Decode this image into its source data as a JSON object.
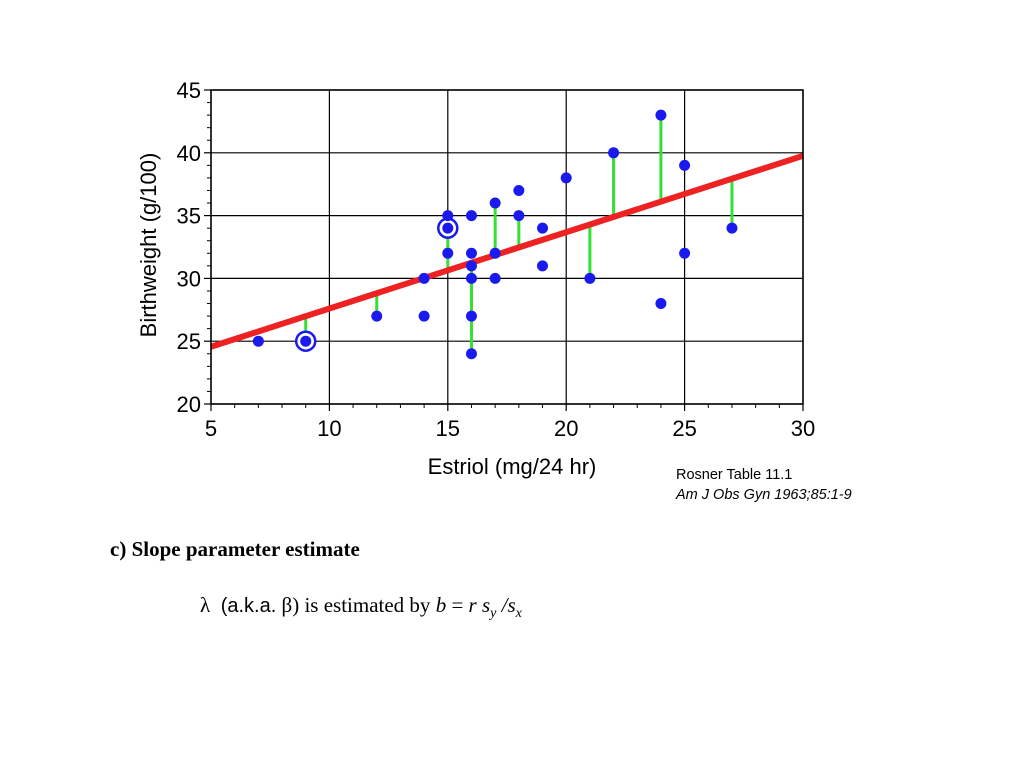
{
  "chart_data": {
    "type": "scatter",
    "xlabel": "Estriol (mg/24 hr)",
    "ylabel": "Birthweight (g/100)",
    "xlim": [
      5,
      30
    ],
    "ylim": [
      20,
      45
    ],
    "x_ticks": [
      "5",
      "10",
      "15",
      "20",
      "25",
      "30"
    ],
    "y_ticks": [
      "20",
      "25",
      "30",
      "35",
      "40",
      "45"
    ],
    "grid": true,
    "points": [
      {
        "x": 7,
        "y": 25
      },
      {
        "x": 9,
        "y": 25,
        "circled": true
      },
      {
        "x": 12,
        "y": 27
      },
      {
        "x": 14,
        "y": 27
      },
      {
        "x": 14,
        "y": 30
      },
      {
        "x": 15,
        "y": 32
      },
      {
        "x": 15,
        "y": 34,
        "circled": true
      },
      {
        "x": 15,
        "y": 35
      },
      {
        "x": 16,
        "y": 24
      },
      {
        "x": 16,
        "y": 27
      },
      {
        "x": 16,
        "y": 30
      },
      {
        "x": 16,
        "y": 31
      },
      {
        "x": 16,
        "y": 32
      },
      {
        "x": 16,
        "y": 35
      },
      {
        "x": 17,
        "y": 30
      },
      {
        "x": 17,
        "y": 32
      },
      {
        "x": 17,
        "y": 36
      },
      {
        "x": 18,
        "y": 35
      },
      {
        "x": 18,
        "y": 37
      },
      {
        "x": 19,
        "y": 31
      },
      {
        "x": 19,
        "y": 34
      },
      {
        "x": 20,
        "y": 38
      },
      {
        "x": 21,
        "y": 30
      },
      {
        "x": 22,
        "y": 40
      },
      {
        "x": 24,
        "y": 28
      },
      {
        "x": 24,
        "y": 43
      },
      {
        "x": 25,
        "y": 32
      },
      {
        "x": 25,
        "y": 39
      },
      {
        "x": 27,
        "y": 34
      }
    ],
    "regression_line": {
      "intercept": 21.52,
      "slope": 0.608,
      "color": "#ee2222"
    },
    "residual_lines": [
      {
        "x": 9,
        "y": 25
      },
      {
        "x": 12,
        "y": 27
      },
      {
        "x": 15,
        "y": 35
      },
      {
        "x": 16,
        "y": 24
      },
      {
        "x": 17,
        "y": 36
      },
      {
        "x": 18,
        "y": 35
      },
      {
        "x": 21,
        "y": 30
      },
      {
        "x": 22,
        "y": 40
      },
      {
        "x": 24,
        "y": 43
      },
      {
        "x": 27,
        "y": 34
      }
    ],
    "colors": {
      "points": "#1a1aee",
      "residuals": "#33e033",
      "line": "#ee2222"
    }
  },
  "citation": {
    "table": "Rosner Table 11.1",
    "journal": "Am  J Obs Gyn 1963;85:1-9"
  },
  "section": {
    "heading": "c)  Slope parameter estimate",
    "lambda": "λ",
    "aka": "(a.k.a.",
    "beta": "β",
    "rest": ") is estimated by",
    "b": "b",
    "eq": "=",
    "r": "r",
    "s1": "s",
    "sub_y": "y",
    "slash": "/",
    "s2": "s",
    "sub_x": "x"
  }
}
